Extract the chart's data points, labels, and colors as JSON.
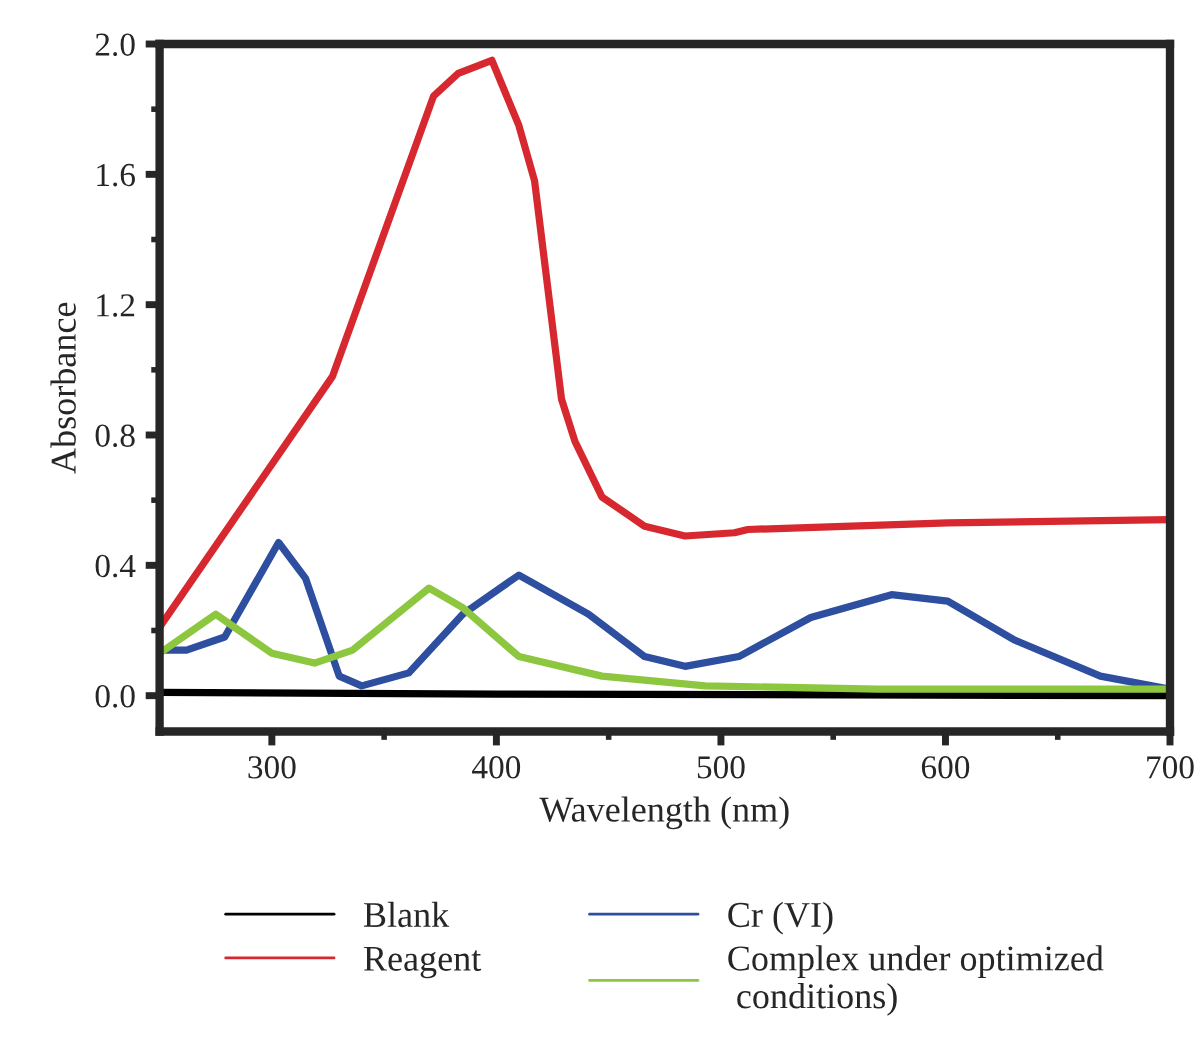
{
  "chart_data": {
    "type": "line",
    "xlabel": "Wavelength (nm)",
    "ylabel": "Absorbance",
    "xlim": [
      250,
      700
    ],
    "ylim": [
      -0.11,
      2.0
    ],
    "xticks": [
      300,
      400,
      500,
      600,
      700,
      {
        "value": 350,
        "label": null
      },
      {
        "value": 450,
        "label": null
      },
      {
        "value": 550,
        "label": null
      },
      {
        "value": 650,
        "label": null
      }
    ],
    "yticks": [
      {
        "value": 0,
        "label": "0.0"
      },
      {
        "value": 0.4,
        "label": "0.4"
      },
      {
        "value": 0.8,
        "label": "0.8"
      },
      {
        "value": 1.2,
        "label": "1.2"
      },
      {
        "value": 1.6,
        "label": "1.6"
      },
      {
        "value": 2.0,
        "label": "2.0"
      },
      {
        "value": 0.2,
        "label": null
      },
      {
        "value": 0.6,
        "label": null
      },
      {
        "value": 1.0,
        "label": null
      },
      {
        "value": 1.4,
        "label": null
      },
      {
        "value": 1.8,
        "label": null
      }
    ],
    "grid": false,
    "legend": "bottom",
    "marker": "none",
    "line_style": "solid",
    "series": [
      {
        "name": "Blank",
        "color": "#000000",
        "x": [
          250,
          400,
          700
        ],
        "values": [
          0.01,
          0.005,
          0.0
        ]
      },
      {
        "name": "Reagent",
        "color": "#d7282f",
        "x": [
          250,
          327,
          372,
          383,
          398,
          410,
          417,
          429,
          435,
          447,
          466,
          484,
          506,
          512,
          601,
          700
        ],
        "values": [
          0.21,
          0.98,
          1.84,
          1.91,
          1.95,
          1.75,
          1.58,
          0.91,
          0.78,
          0.61,
          0.52,
          0.49,
          0.5,
          0.51,
          0.53,
          0.54
        ]
      },
      {
        "name": "Cr (VI)",
        "color": "#2e4ea0",
        "x": [
          250,
          262,
          279,
          303,
          315,
          330,
          340,
          361,
          385,
          410,
          441,
          466,
          484,
          508,
          540,
          576,
          601,
          631,
          669,
          700
        ],
        "values": [
          0.14,
          0.14,
          0.18,
          0.47,
          0.36,
          0.06,
          0.03,
          0.07,
          0.25,
          0.37,
          0.25,
          0.12,
          0.09,
          0.12,
          0.24,
          0.31,
          0.29,
          0.17,
          0.06,
          0.02
        ]
      },
      {
        "name": "Complex under optimized\n conditions)",
        "color": "#8dc63f",
        "x": [
          250,
          275,
          300,
          319,
          336,
          370,
          385,
          410,
          447,
          493,
          570,
          700
        ],
        "values": [
          0.13,
          0.25,
          0.13,
          0.1,
          0.14,
          0.33,
          0.27,
          0.12,
          0.06,
          0.03,
          0.02,
          0.02
        ]
      }
    ]
  }
}
